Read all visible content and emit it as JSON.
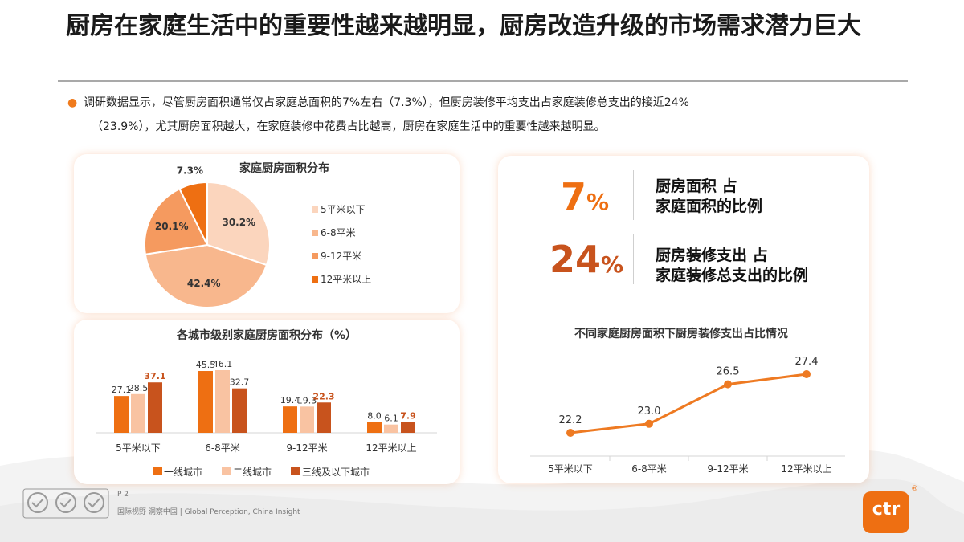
{
  "title": "厨房在家庭生活中的重要性越来越明显，厨房改造升级的市场需求潜力巨大",
  "intro": {
    "line1": "调研数据显示，尽管厨房面积通常仅占家庭总面积的7%左右（7.3%），但厨房装修平均支出占家庭装修总支出的接近24%",
    "line2": "（23.9%），尤其厨房面积越大，在家庭装修中花费占比越高，厨房在家庭生活中的重要性越来越明显。"
  },
  "kpis": [
    {
      "value": "7",
      "unit": "%",
      "line1": "厨房面积 占",
      "line2": "家庭面积的比例"
    },
    {
      "value": "24",
      "unit": "%",
      "line1": "厨房装修支出 占",
      "line2": "家庭装修总支出的比例"
    }
  ],
  "colors": {
    "accent": "#ee6f12",
    "pie": [
      "#fbd5bd",
      "#f8b78d",
      "#f59a5f",
      "#ee6f12"
    ],
    "bar": [
      "#ee6f12",
      "#f9c3a2",
      "#c8531d"
    ],
    "line": "#ee7a22",
    "highlight_label": "#c8531d"
  },
  "chart_data": [
    {
      "type": "pie",
      "title": "家庭厨房面积分布",
      "categories": [
        "5平米以下",
        "6-8平米",
        "9-12平米",
        "12平米以上"
      ],
      "values": [
        30.2,
        42.4,
        20.1,
        7.3
      ],
      "labels": [
        "30.2%",
        "42.4%",
        "20.1%",
        "7.3%"
      ],
      "legend": "right"
    },
    {
      "type": "bar",
      "title": "各城市级别家庭厨房面积分布（%）",
      "categories": [
        "5平米以下",
        "6-8平米",
        "9-12平米",
        "12平米以上"
      ],
      "series": [
        {
          "name": "一线城市",
          "values": [
            27.1,
            45.5,
            19.4,
            8.0
          ]
        },
        {
          "name": "二线城市",
          "values": [
            28.5,
            46.1,
            19.3,
            6.1
          ]
        },
        {
          "name": "三线及以下城市",
          "values": [
            37.1,
            32.7,
            22.3,
            7.9
          ]
        }
      ],
      "ylim": [
        0,
        50
      ],
      "grid": false,
      "legend": "bottom"
    },
    {
      "type": "line",
      "title": "不同家庭厨房面积下厨房装修支出占比情况",
      "categories": [
        "5平米以下",
        "6-8平米",
        "9-12平米",
        "12平米以上"
      ],
      "values": [
        22.2,
        23.0,
        26.5,
        27.4
      ],
      "ylim": [
        20,
        28
      ],
      "grid": false
    }
  ],
  "footer": {
    "page": "P 2",
    "tagline": "国际视野 洞察中国 | Global Perception, China Insight",
    "logo": "ctr",
    "registered": "®"
  }
}
